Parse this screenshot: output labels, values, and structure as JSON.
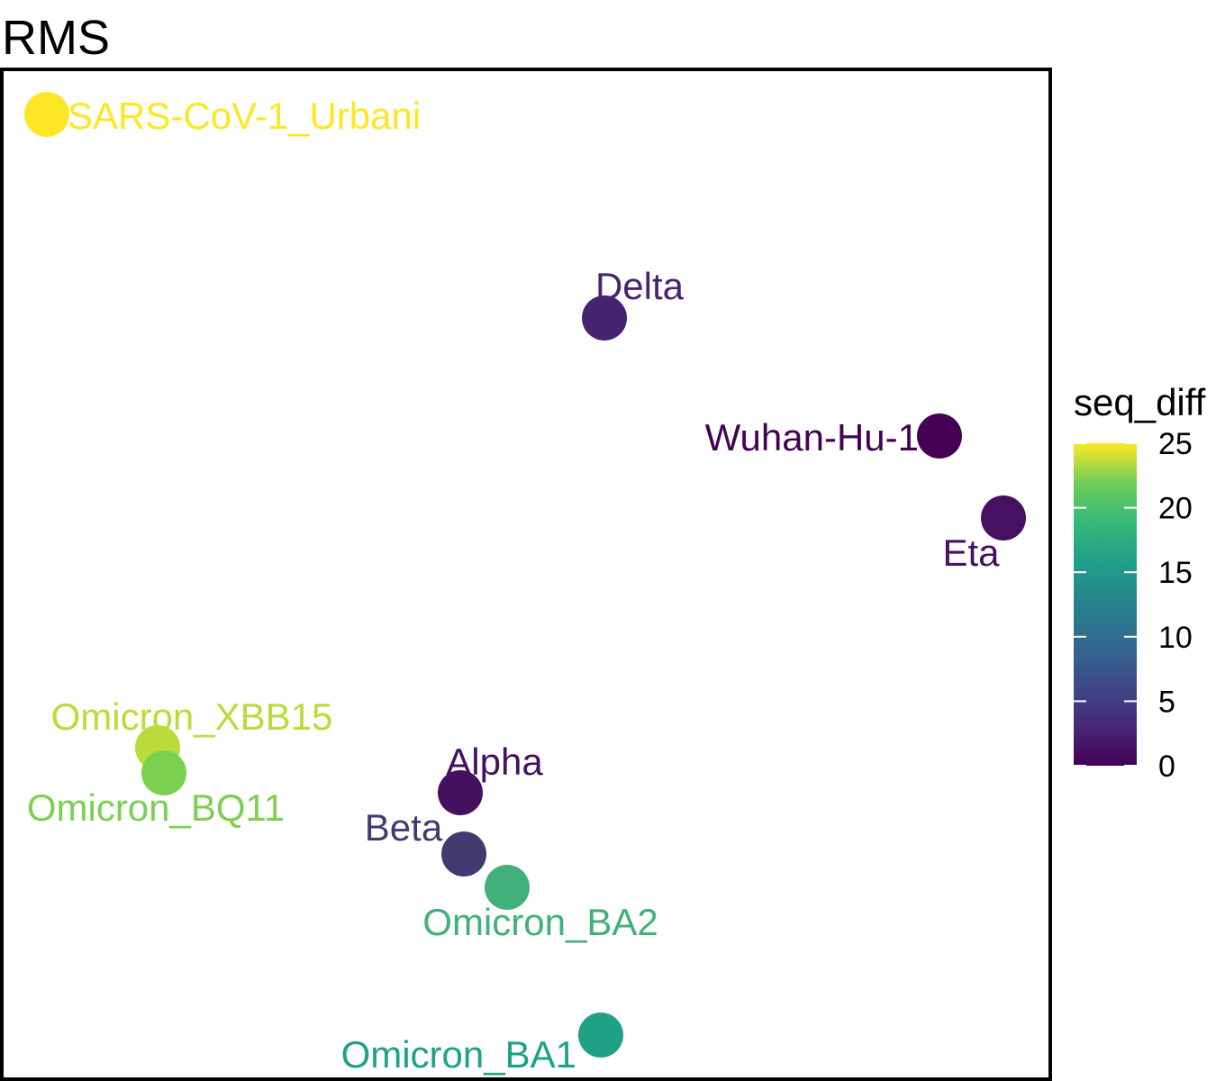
{
  "chart_data": {
    "type": "scatter",
    "title": "RMS",
    "xlabel": "",
    "ylabel": "",
    "axes_visible": false,
    "grid": false,
    "color_variable": "seq_diff",
    "color_scale": "viridis",
    "color_range": [
      0,
      25
    ],
    "colorbar_ticks": [
      "0",
      "5",
      "10",
      "15",
      "20",
      "25"
    ],
    "legend_position": "right",
    "points": [
      {
        "label": "SARS-CoV-1_Urbani",
        "seq_diff": 25.5,
        "color": "#FDE725"
      },
      {
        "label": "Delta",
        "seq_diff": 2.5,
        "color": "#46246F"
      },
      {
        "label": "Wuhan-Hu-1",
        "seq_diff": 0,
        "color": "#440154"
      },
      {
        "label": "Eta",
        "seq_diff": 1.5,
        "color": "#471063"
      },
      {
        "label": "Omicron_XBB15",
        "seq_diff": 23,
        "color": "#BBDB3A"
      },
      {
        "label": "Omicron_BQ11",
        "seq_diff": 21,
        "color": "#7BD04F"
      },
      {
        "label": "Alpha",
        "seq_diff": 1,
        "color": "#45105F"
      },
      {
        "label": "Beta",
        "seq_diff": 3.5,
        "color": "#443A6F"
      },
      {
        "label": "Omicron_BA2",
        "seq_diff": 18,
        "color": "#42B07A"
      },
      {
        "label": "Omicron_BA1",
        "seq_diff": 15.5,
        "color": "#1FA184"
      }
    ]
  }
}
